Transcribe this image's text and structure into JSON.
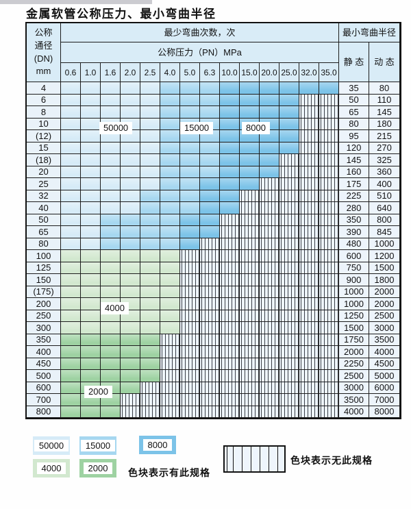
{
  "title": "金属软管公称压力、最小弯曲半径",
  "colors": {
    "c50000": "#d6ebf7",
    "c15000": "#a6d7f0",
    "c8000": "#7cc3e8",
    "c4000": "#d2e8cf",
    "c2000": "#9ed2a2",
    "header_bg": "#d9ecf7",
    "dn_col_bg": "#e9f2f9",
    "value_col_bg": "#edf4fb",
    "nospec_bg": "#eef5fc",
    "grid_line": "#1c1c1c"
  },
  "table": {
    "header": {
      "dn_label_lines": [
        "公称",
        "通径",
        "(DN)",
        "mm"
      ],
      "cycles_label": "最少弯曲次数，次",
      "pressure_label": "公称压力（PN）MPa",
      "radius_label": "最小弯曲半径",
      "static_label": "静 态",
      "dynamic_label": "动 态",
      "pressures": [
        "0.6",
        "1.0",
        "1.6",
        "2.0",
        "2.5",
        "4.0",
        "5.0",
        "6.3",
        "10.0",
        "15.0",
        "20.0",
        "25.0",
        "32.0",
        "35.0"
      ]
    },
    "rows": [
      {
        "dn": "4",
        "st": "35",
        "dy": "80",
        "bands": [
          [
            5,
            "c50000"
          ],
          [
            3,
            "c15000"
          ],
          [
            6,
            "c8000"
          ]
        ]
      },
      {
        "dn": "6",
        "st": "50",
        "dy": "110",
        "bands": [
          [
            5,
            "c50000"
          ],
          [
            3,
            "c15000"
          ],
          [
            4,
            "c8000"
          ]
        ]
      },
      {
        "dn": "8",
        "st": "65",
        "dy": "145",
        "bands": [
          [
            5,
            "c50000"
          ],
          [
            3,
            "c15000"
          ],
          [
            4,
            "c8000"
          ]
        ]
      },
      {
        "dn": "10",
        "st": "80",
        "dy": "180",
        "bands": [
          [
            5,
            "c50000"
          ],
          [
            3,
            "c15000"
          ],
          [
            4,
            "c8000"
          ]
        ]
      },
      {
        "dn": "(12)",
        "st": "95",
        "dy": "215",
        "bands": [
          [
            5,
            "c50000"
          ],
          [
            3,
            "c15000"
          ],
          [
            4,
            "c8000"
          ]
        ]
      },
      {
        "dn": "15",
        "st": "120",
        "dy": "270",
        "bands": [
          [
            5,
            "c50000"
          ],
          [
            3,
            "c15000"
          ],
          [
            4,
            "c8000"
          ]
        ]
      },
      {
        "dn": "(18)",
        "st": "145",
        "dy": "325",
        "bands": [
          [
            5,
            "c50000"
          ],
          [
            3,
            "c15000"
          ],
          [
            3,
            "c8000"
          ]
        ]
      },
      {
        "dn": "20",
        "st": "160",
        "dy": "360",
        "bands": [
          [
            5,
            "c50000"
          ],
          [
            3,
            "c15000"
          ],
          [
            3,
            "c8000"
          ]
        ]
      },
      {
        "dn": "25",
        "st": "175",
        "dy": "400",
        "bands": [
          [
            5,
            "c50000"
          ],
          [
            2,
            "c15000"
          ],
          [
            3,
            "c8000"
          ]
        ]
      },
      {
        "dn": "32",
        "st": "225",
        "dy": "510",
        "bands": [
          [
            4,
            "c50000"
          ],
          [
            3,
            "c15000"
          ],
          [
            2,
            "c8000"
          ]
        ]
      },
      {
        "dn": "40",
        "st": "280",
        "dy": "640",
        "bands": [
          [
            4,
            "c50000"
          ],
          [
            3,
            "c15000"
          ],
          [
            2,
            "c8000"
          ]
        ]
      },
      {
        "dn": "50",
        "st": "350",
        "dy": "800",
        "bands": [
          [
            2,
            "c50000"
          ],
          [
            4,
            "c15000"
          ],
          [
            2,
            "c8000"
          ]
        ]
      },
      {
        "dn": "65",
        "st": "390",
        "dy": "845",
        "bands": [
          [
            2,
            "c50000"
          ],
          [
            4,
            "c15000"
          ],
          [
            2,
            "c8000"
          ]
        ]
      },
      {
        "dn": "80",
        "st": "480",
        "dy": "1000",
        "bands": [
          [
            2,
            "c50000"
          ],
          [
            4,
            "c15000"
          ],
          [
            1,
            "c8000"
          ]
        ]
      },
      {
        "dn": "100",
        "st": "600",
        "dy": "1200",
        "bands": [
          [
            6,
            "c4000"
          ]
        ]
      },
      {
        "dn": "125",
        "st": "750",
        "dy": "1500",
        "bands": [
          [
            6,
            "c4000"
          ]
        ]
      },
      {
        "dn": "150",
        "st": "900",
        "dy": "1800",
        "bands": [
          [
            6,
            "c4000"
          ]
        ]
      },
      {
        "dn": "(175)",
        "st": "1000",
        "dy": "2000",
        "bands": [
          [
            6,
            "c4000"
          ]
        ]
      },
      {
        "dn": "200",
        "st": "1000",
        "dy": "2000",
        "bands": [
          [
            6,
            "c4000"
          ]
        ]
      },
      {
        "dn": "250",
        "st": "1250",
        "dy": "2500",
        "bands": [
          [
            6,
            "c4000"
          ]
        ]
      },
      {
        "dn": "300",
        "st": "1500",
        "dy": "3000",
        "bands": [
          [
            6,
            "c4000"
          ]
        ]
      },
      {
        "dn": "350",
        "st": "1750",
        "dy": "3500",
        "bands": [
          [
            5,
            "c2000"
          ]
        ]
      },
      {
        "dn": "400",
        "st": "2000",
        "dy": "4000",
        "bands": [
          [
            5,
            "c2000"
          ]
        ]
      },
      {
        "dn": "450",
        "st": "2250",
        "dy": "4500",
        "bands": [
          [
            5,
            "c2000"
          ]
        ]
      },
      {
        "dn": "500",
        "st": "2500",
        "dy": "5000",
        "bands": [
          [
            5,
            "c2000"
          ]
        ]
      },
      {
        "dn": "600",
        "st": "3000",
        "dy": "6000",
        "bands": [
          [
            4,
            "c2000"
          ]
        ]
      },
      {
        "dn": "700",
        "st": "3500",
        "dy": "7000",
        "bands": [
          [
            3,
            "c2000"
          ]
        ]
      },
      {
        "dn": "800",
        "st": "4000",
        "dy": "8000",
        "bands": [
          [
            3,
            "c2000"
          ]
        ]
      }
    ]
  },
  "overlay_labels": [
    {
      "id": "l50000",
      "text": "50000"
    },
    {
      "id": "l15000",
      "text": "15000"
    },
    {
      "id": "l8000",
      "text": "8000"
    },
    {
      "id": "l4000",
      "text": "4000"
    },
    {
      "id": "l2000",
      "text": "2000"
    }
  ],
  "legend": {
    "items": [
      {
        "label": "50000",
        "color": "c50000"
      },
      {
        "label": "15000",
        "color": "c15000"
      },
      {
        "label": "8000",
        "color": "c8000"
      },
      {
        "label": "4000",
        "color": "c4000"
      },
      {
        "label": "2000",
        "color": "c2000"
      }
    ],
    "has_spec_text": "色块表示有此规格",
    "no_spec_text": "色块表示无此规格"
  }
}
